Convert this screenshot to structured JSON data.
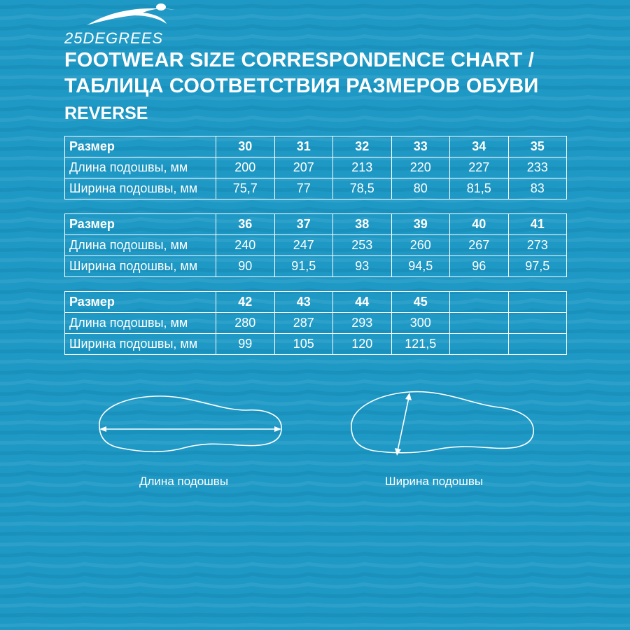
{
  "brand": {
    "name": "25DEGREES"
  },
  "header": {
    "title_en": "FOOTWEAR SIZE CORRESPONDENCE CHART /",
    "title_ru": "ТАБЛИЦА СООТВЕТСТВИЯ РАЗМЕРОВ ОБУВИ",
    "subtitle": "REVERSE"
  },
  "tables": [
    {
      "size_label": "Размер",
      "length_label": "Длина подошвы, мм",
      "width_label": "Ширина подошвы, мм",
      "sizes": [
        "30",
        "31",
        "32",
        "33",
        "34",
        "35"
      ],
      "lengths": [
        "200",
        "207",
        "213",
        "220",
        "227",
        "233"
      ],
      "widths": [
        "75,7",
        "77",
        "78,5",
        "80",
        "81,5",
        "83"
      ]
    },
    {
      "size_label": "Размер",
      "length_label": "Длина подошвы, мм",
      "width_label": "Ширина подошвы, мм",
      "sizes": [
        "36",
        "37",
        "38",
        "39",
        "40",
        "41"
      ],
      "lengths": [
        "240",
        "247",
        "253",
        "260",
        "267",
        "273"
      ],
      "widths": [
        "90",
        "91,5",
        "93",
        "94,5",
        "96",
        "97,5"
      ]
    },
    {
      "size_label": "Размер",
      "length_label": "Длина подошвы, мм",
      "width_label": "Ширина подошвы, мм",
      "sizes": [
        "42",
        "43",
        "44",
        "45",
        "",
        ""
      ],
      "lengths": [
        "280",
        "287",
        "293",
        "300",
        "",
        ""
      ],
      "widths": [
        "99",
        "105",
        "120",
        "121,5",
        "",
        ""
      ]
    }
  ],
  "diagrams": {
    "length_caption": "Длина подошвы",
    "width_caption": "Ширина подошвы"
  },
  "colors": {
    "background": "#1e98c4",
    "wave_light": "#3aa8d0",
    "wave_dark": "#178bb6",
    "foreground": "#ffffff"
  }
}
